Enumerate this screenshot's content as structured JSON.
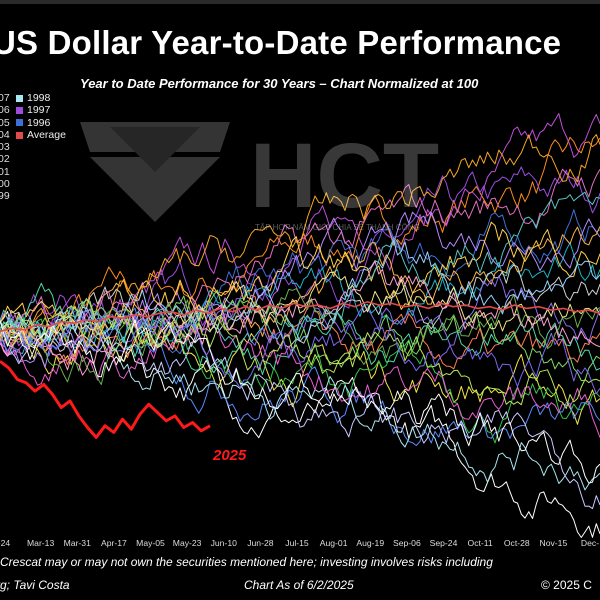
{
  "title": "US Dollar Year-to-Date Performance",
  "subtitle": "Year to Date Performance for 30 Years – Chart Normalized at 100",
  "watermark": {
    "text": "HCT",
    "subtext": "TẬP HỢP NĂM GIỚI CHIA SẺ THÀNH CÔNG"
  },
  "legend": {
    "entries": [
      {
        "year": "07",
        "label": "1998",
        "color": "#a8e6f0"
      },
      {
        "year": "06",
        "label": "1997",
        "color": "#9b4de0"
      },
      {
        "year": "05",
        "label": "1996",
        "color": "#3f6fd6"
      },
      {
        "year": "04",
        "label": "Average",
        "color": "#e04a4a"
      },
      {
        "year": "03",
        "label": "",
        "color": ""
      },
      {
        "year": "02",
        "label": "",
        "color": ""
      },
      {
        "year": "01",
        "label": "",
        "color": ""
      },
      {
        "year": "00",
        "label": "",
        "color": ""
      },
      {
        "year": "99",
        "label": "",
        "color": ""
      }
    ]
  },
  "chart_data": {
    "type": "line",
    "title": "US Dollar Year-to-Date Performance",
    "subtitle": "Year to Date Performance for 30 Years – Chart Normalized at 100",
    "x_ticks": [
      "-24",
      "Mar-13",
      "Mar-31",
      "Apr-17",
      "May-05",
      "May-23",
      "Jun-10",
      "Jun-28",
      "Jul-15",
      "Aug-01",
      "Aug-19",
      "Sep-06",
      "Sep-24",
      "Oct-11",
      "Oct-28",
      "Nov-15",
      "Dec-"
    ],
    "ylim": [
      88,
      114
    ],
    "grid": false,
    "legend_position": "top-left",
    "highlight": {
      "name": "2025",
      "color": "#ff1a1a",
      "values": [
        98.2,
        97.8,
        97.1,
        96.9,
        96.4,
        96.8,
        96.2,
        95.4,
        95.8,
        94.9,
        94.2,
        93.6,
        94.3,
        93.9,
        94.7,
        94.1,
        95.0,
        95.6,
        95.1,
        94.6,
        94.9,
        94.2,
        94.5,
        94.0,
        94.3
      ]
    },
    "average": {
      "name": "Average",
      "color": "#e04a4a",
      "values": [
        100.0,
        100.2,
        100.1,
        100.4,
        100.3,
        100.6,
        100.5,
        100.7,
        100.6,
        100.9,
        100.8,
        101.0,
        100.9,
        101.1,
        101.2,
        101.0,
        101.3,
        101.1,
        101.4,
        101.2,
        101.5,
        101.3,
        101.6,
        101.4,
        101.7,
        101.5,
        101.6,
        101.4,
        101.7,
        101.5,
        101.8,
        101.6,
        101.7,
        101.5,
        101.6,
        101.4,
        101.7,
        101.5,
        101.6,
        101.4,
        101.5,
        101.3,
        101.6,
        101.4,
        101.5,
        101.3,
        101.4,
        101.2,
        101.3,
        101.1
      ]
    },
    "series_count": 30,
    "series_colors": [
      "#ff8c1a",
      "#9b4de0",
      "#c14fd8",
      "#3f6fd6",
      "#ffffff",
      "#f2e44a",
      "#36c24a",
      "#1fb3c9",
      "#b38cff",
      "#ffb347",
      "#7fdc6a",
      "#e070c0",
      "#5a8cff",
      "#d0d0d0",
      "#ff7f50",
      "#a8e6f0",
      "#ffd24d",
      "#8a6df0",
      "#4cd9a6",
      "#e85dd0",
      "#6ab04c",
      "#f5a623",
      "#9ad0ff",
      "#c9c9ff",
      "#ff9ed2",
      "#59c3c3",
      "#b8e65a",
      "#7b68ee",
      "#ffffff",
      "#f0e68c"
    ],
    "series_end_levels": [
      111,
      109,
      112,
      107,
      89,
      96,
      94,
      103,
      108,
      105,
      98,
      110,
      93,
      104,
      97,
      92,
      106,
      102,
      99,
      95,
      100,
      113,
      104,
      91,
      101,
      107,
      96,
      97,
      92,
      103
    ]
  },
  "label_2025": "2025",
  "disclaimer": "Crescat may or may not own the securities mentioned here; investing involves risks including",
  "source": "rg; Tavi Costa",
  "as_of": "Chart As of 6/2/2025",
  "copyright": "© 2025 C"
}
